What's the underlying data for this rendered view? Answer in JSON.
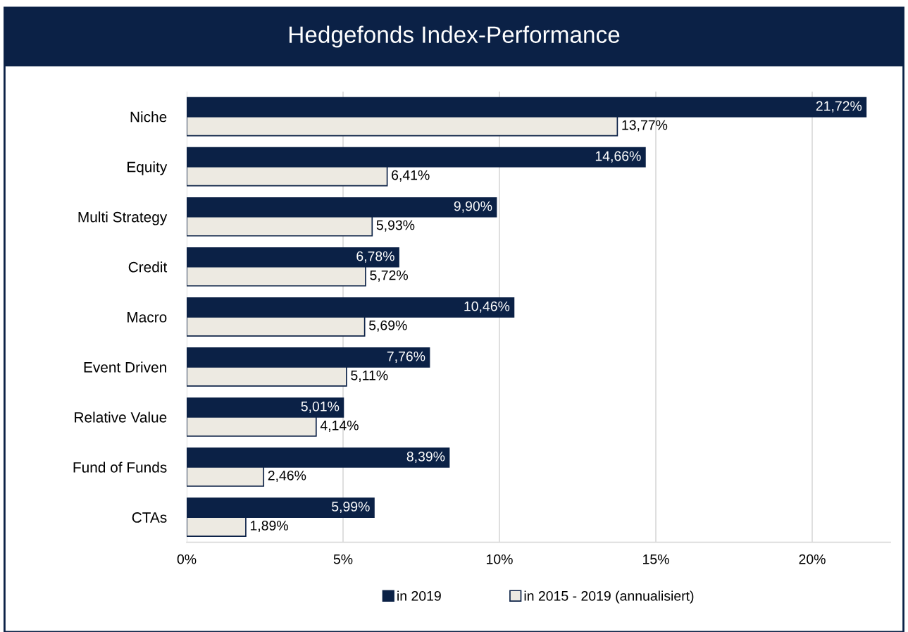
{
  "chart_data": {
    "type": "bar",
    "orientation": "horizontal",
    "title": "Hedgefonds Index-Performance",
    "categories": [
      "Niche",
      "Equity",
      "Multi Strategy",
      "Credit",
      "Macro",
      "Event Driven",
      "Relative Value",
      "Fund of Funds",
      "CTAs"
    ],
    "series": [
      {
        "name": "in 2019",
        "color": "#0b2146",
        "values": [
          21.72,
          14.66,
          9.9,
          6.78,
          10.46,
          7.76,
          5.01,
          8.39,
          5.99
        ],
        "value_labels": [
          "21,72%",
          "14,66%",
          "9,90%",
          "6,78%",
          "10,46%",
          "7,76%",
          "5,01%",
          "8,39%",
          "5,99%"
        ]
      },
      {
        "name": "in 2015 - 2019 (annualisiert)",
        "color": "#edeae2",
        "values": [
          13.77,
          6.41,
          5.93,
          5.72,
          5.69,
          5.11,
          4.14,
          2.46,
          1.89
        ],
        "value_labels": [
          "13,77%",
          "6,41%",
          "5,93%",
          "5,72%",
          "5,69%",
          "5,11%",
          "4,14%",
          "2,46%",
          "1,89%"
        ]
      }
    ],
    "xlim": [
      0,
      22.5
    ],
    "xticks": [
      {
        "value": 0,
        "label": "0%"
      },
      {
        "value": 5,
        "label": "5%"
      },
      {
        "value": 10,
        "label": "10%"
      },
      {
        "value": 15,
        "label": "15%"
      },
      {
        "value": 20,
        "label": "20%"
      }
    ],
    "grid": "x",
    "legend": "bottom"
  }
}
